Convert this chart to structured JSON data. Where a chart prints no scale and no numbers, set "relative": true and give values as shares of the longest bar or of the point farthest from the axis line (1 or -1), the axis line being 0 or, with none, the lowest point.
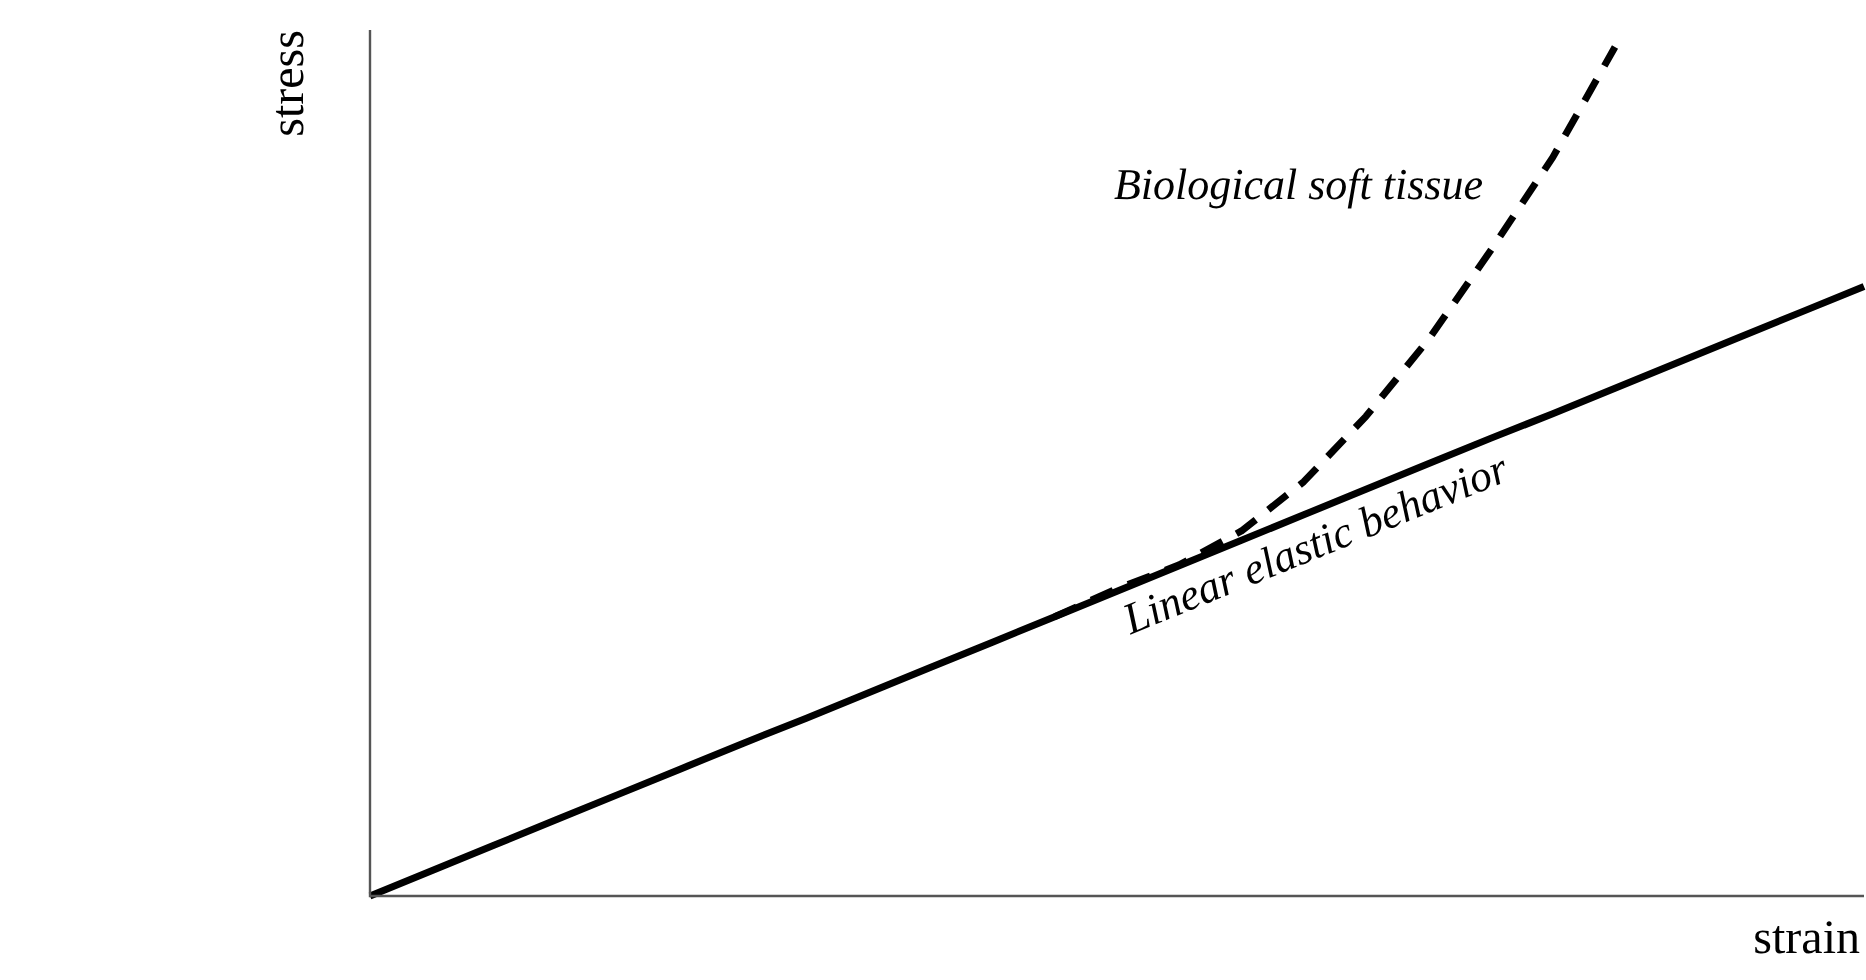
{
  "chart_data": {
    "type": "line",
    "relative": true,
    "xlabel": "strain",
    "ylabel": "stress",
    "legend": false,
    "marker": "none",
    "categories": [
      null,
      null,
      null,
      null,
      null,
      null,
      null,
      null,
      null,
      null,
      null,
      null,
      null,
      null,
      null,
      null,
      null,
      null,
      null,
      null,
      null,
      null,
      null,
      null,
      null
    ],
    "series": [
      {
        "name": "Linear elastic behavior",
        "color": "#000000",
        "line_style": "solid",
        "values": [
          0,
          0.03,
          0.06,
          0.09,
          0.12,
          0.15,
          0.18,
          0.209,
          0.239,
          0.269,
          0.299,
          0.329,
          0.359,
          0.389,
          0.419,
          0.449,
          0.479,
          0.509,
          0.539,
          0.568,
          0.598,
          0.628,
          0.658,
          0.688,
          0.718
        ]
      },
      {
        "name": "Biological soft tissue",
        "color": "#000000",
        "line_style": "dashed",
        "values": [
          null,
          null,
          null,
          null,
          null,
          null,
          null,
          null,
          null,
          null,
          null,
          0.329,
          0.362,
          0.39,
          0.43,
          0.488,
          0.565,
          0.655,
          0.76,
          0.87,
          1,
          null,
          null,
          null,
          null
        ]
      }
    ]
  }
}
